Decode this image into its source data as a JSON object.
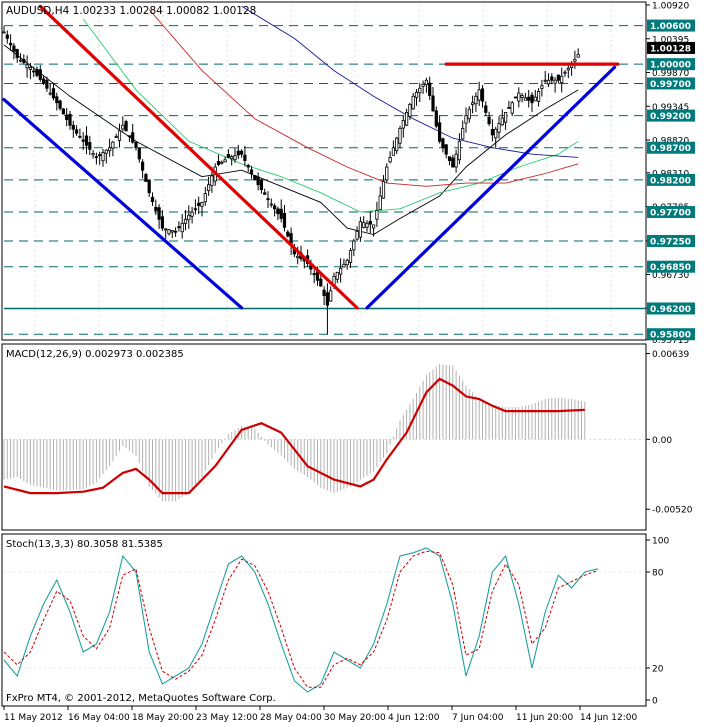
{
  "colors": {
    "background": "#ffffff",
    "grid": "#c8c8c8",
    "border": "#000000",
    "candle": "#000000",
    "level_line": "#006a6a",
    "level_label_bg": "#007a7a",
    "current_price_bg": "#000000",
    "trend_red": "#e00000",
    "trend_blue": "#0000dd",
    "ma_fast": "#000000",
    "ma_green": "#2ecc71",
    "ma_red": "#cc2222",
    "ma_blue": "#1a1a99",
    "macd_signal": "#cc0000",
    "macd_hist": "#b0b0b0",
    "stoch_main": "#20a0a0",
    "stoch_signal": "#cc0000"
  },
  "chart_data": [
    {
      "type": "candlestick",
      "title": "AUDUSD,H4  1.00233 1.00284 1.00082 1.00128",
      "price_axis_ticks": [
        "1.00920",
        "1.00395",
        "0.99870",
        "0.99345",
        "0.98820",
        "0.98310",
        "0.97785",
        "0.97250",
        "0.96730",
        "0.96210",
        "0.95715"
      ],
      "ylim": [
        0.9571,
        1.0092
      ],
      "current_price": "1.00128",
      "levels": [
        {
          "label": "1.00600",
          "value": 1.006
        },
        {
          "label": "1.00000",
          "value": 1.0
        },
        {
          "label": "0.99700",
          "value": 0.997
        },
        {
          "label": "0.99200",
          "value": 0.992
        },
        {
          "label": "0.98700",
          "value": 0.987
        },
        {
          "label": "0.98200",
          "value": 0.982
        },
        {
          "label": "0.97700",
          "value": 0.977
        },
        {
          "label": "0.97250",
          "value": 0.9725
        },
        {
          "label": "0.96850",
          "value": 0.9685
        },
        {
          "label": "0.96200",
          "value": 0.962
        },
        {
          "label": "0.95800",
          "value": 0.958
        }
      ],
      "close_path": [
        [
          0,
          1.005
        ],
        [
          4,
          1.001
        ],
        [
          8,
          0.9995
        ],
        [
          12,
          0.997
        ],
        [
          16,
          0.994
        ],
        [
          20,
          0.9905
        ],
        [
          24,
          0.988
        ],
        [
          28,
          0.9855
        ],
        [
          32,
          0.987
        ],
        [
          36,
          0.9905
        ],
        [
          40,
          0.987
        ],
        [
          44,
          0.98
        ],
        [
          48,
          0.9745
        ],
        [
          52,
          0.974
        ],
        [
          56,
          0.9765
        ],
        [
          60,
          0.9785
        ],
        [
          64,
          0.984
        ],
        [
          68,
          0.9855
        ],
        [
          72,
          0.986
        ],
        [
          76,
          0.982
        ],
        [
          80,
          0.979
        ],
        [
          84,
          0.976
        ],
        [
          88,
          0.9705
        ],
        [
          92,
          0.969
        ],
        [
          96,
          0.9655
        ],
        [
          98,
          0.9625
        ],
        [
          100,
          0.967
        ],
        [
          104,
          0.9695
        ],
        [
          108,
          0.9755
        ],
        [
          112,
          0.975
        ],
        [
          116,
          0.984
        ],
        [
          120,
          0.99
        ],
        [
          124,
          0.995
        ],
        [
          128,
          0.9975
        ],
        [
          132,
          0.988
        ],
        [
          136,
          0.984
        ],
        [
          140,
          0.992
        ],
        [
          144,
          0.996
        ],
        [
          148,
          0.989
        ],
        [
          152,
          0.9925
        ],
        [
          156,
          0.9955
        ],
        [
          160,
          0.994
        ],
        [
          164,
          0.9975
        ],
        [
          168,
          0.9975
        ],
        [
          172,
          1.0
        ],
        [
          174,
          1.0015
        ]
      ],
      "moving_averages": [
        {
          "color": "ma_fast",
          "path": [
            [
              0,
              1.003
            ],
            [
              20,
              0.995
            ],
            [
              40,
              0.988
            ],
            [
              60,
              0.9825
            ],
            [
              72,
              0.9835
            ],
            [
              84,
              0.981
            ],
            [
              96,
              0.9785
            ],
            [
              104,
              0.9745
            ],
            [
              112,
              0.9735
            ],
            [
              120,
              0.976
            ],
            [
              132,
              0.9795
            ],
            [
              140,
              0.984
            ],
            [
              152,
              0.989
            ],
            [
              164,
              0.993
            ],
            [
              174,
              0.996
            ]
          ]
        },
        {
          "color": "ma_green",
          "path": [
            [
              24,
              1.007
            ],
            [
              40,
              0.996
            ],
            [
              56,
              0.988
            ],
            [
              72,
              0.9845
            ],
            [
              84,
              0.9825
            ],
            [
              96,
              0.98
            ],
            [
              108,
              0.977
            ],
            [
              120,
              0.9775
            ],
            [
              132,
              0.98
            ],
            [
              144,
              0.9815
            ],
            [
              156,
              0.984
            ],
            [
              168,
              0.986
            ],
            [
              174,
              0.988
            ]
          ]
        },
        {
          "color": "ma_red",
          "path": [
            [
              44,
              1.0085
            ],
            [
              60,
              0.999
            ],
            [
              76,
              0.9915
            ],
            [
              92,
              0.987
            ],
            [
              104,
              0.984
            ],
            [
              116,
              0.9815
            ],
            [
              128,
              0.981
            ],
            [
              140,
              0.9815
            ],
            [
              152,
              0.9815
            ],
            [
              164,
              0.983
            ],
            [
              174,
              0.9845
            ]
          ]
        },
        {
          "color": "ma_blue",
          "path": [
            [
              72,
              1.009
            ],
            [
              88,
              1.004
            ],
            [
              100,
              0.999
            ],
            [
              112,
              0.995
            ],
            [
              124,
              0.9915
            ],
            [
              136,
              0.9885
            ],
            [
              148,
              0.987
            ],
            [
              160,
              0.986
            ],
            [
              174,
              0.9855
            ]
          ]
        }
      ],
      "trend_lines": [
        {
          "color": "trend_red",
          "points": [
            [
              11,
              1.009
            ],
            [
              107,
              0.9621
            ]
          ]
        },
        {
          "color": "trend_red",
          "points": [
            [
              134,
              1.0
            ],
            [
              186,
              1.0
            ]
          ]
        },
        {
          "color": "trend_blue",
          "points": [
            [
              0,
              0.9945
            ],
            [
              72,
              0.9621
            ]
          ]
        },
        {
          "color": "trend_blue",
          "points": [
            [
              110,
              0.9621
            ],
            [
              185,
              0.9995
            ]
          ]
        }
      ]
    },
    {
      "type": "line",
      "title": "MACD(12,26,9) 0.002973 0.002385",
      "tick_labels": [
        "0.00639",
        "0.00",
        "-0.00520"
      ],
      "ylim": [
        -0.0066,
        0.0068
      ],
      "histogram": [
        [
          0,
          -0.003
        ],
        [
          4,
          -0.0028
        ],
        [
          8,
          -0.0034
        ],
        [
          12,
          -0.0036
        ],
        [
          16,
          -0.0038
        ],
        [
          20,
          -0.0038
        ],
        [
          24,
          -0.0037
        ],
        [
          28,
          -0.0032
        ],
        [
          32,
          -0.002
        ],
        [
          36,
          -0.0005
        ],
        [
          40,
          -0.0012
        ],
        [
          44,
          -0.0035
        ],
        [
          48,
          -0.0046
        ],
        [
          52,
          -0.0046
        ],
        [
          56,
          -0.004
        ],
        [
          60,
          -0.0028
        ],
        [
          64,
          -0.001
        ],
        [
          68,
          0.0004
        ],
        [
          72,
          0.001
        ],
        [
          76,
          0.0008
        ],
        [
          80,
          -0.0004
        ],
        [
          84,
          -0.0012
        ],
        [
          88,
          -0.0022
        ],
        [
          92,
          -0.0028
        ],
        [
          96,
          -0.0036
        ],
        [
          100,
          -0.004
        ],
        [
          104,
          -0.0036
        ],
        [
          108,
          -0.003
        ],
        [
          112,
          -0.0024
        ],
        [
          116,
          -0.001
        ],
        [
          120,
          0.0014
        ],
        [
          124,
          0.003
        ],
        [
          128,
          0.0048
        ],
        [
          132,
          0.0056
        ],
        [
          136,
          0.0055
        ],
        [
          140,
          0.004
        ],
        [
          144,
          0.003
        ],
        [
          148,
          0.0026
        ],
        [
          152,
          0.0024
        ],
        [
          156,
          0.0024
        ],
        [
          160,
          0.0026
        ],
        [
          164,
          0.003
        ],
        [
          168,
          0.0031
        ],
        [
          172,
          0.003
        ],
        [
          176,
          0.0028
        ]
      ],
      "signal": [
        [
          0,
          -0.0035
        ],
        [
          8,
          -0.004
        ],
        [
          16,
          -0.004
        ],
        [
          24,
          -0.0039
        ],
        [
          30,
          -0.0036
        ],
        [
          36,
          -0.0025
        ],
        [
          40,
          -0.0022
        ],
        [
          44,
          -0.003
        ],
        [
          48,
          -0.004
        ],
        [
          56,
          -0.004
        ],
        [
          64,
          -0.002
        ],
        [
          72,
          0.0007
        ],
        [
          78,
          0.0012
        ],
        [
          84,
          0.0005
        ],
        [
          92,
          -0.002
        ],
        [
          100,
          -0.003
        ],
        [
          108,
          -0.0035
        ],
        [
          112,
          -0.003
        ],
        [
          116,
          -0.0015
        ],
        [
          122,
          0.0005
        ],
        [
          128,
          0.0035
        ],
        [
          132,
          0.0045
        ],
        [
          136,
          0.004
        ],
        [
          140,
          0.0032
        ],
        [
          144,
          0.003
        ],
        [
          148,
          0.0025
        ],
        [
          152,
          0.0021
        ],
        [
          160,
          0.0021
        ],
        [
          168,
          0.0021
        ],
        [
          176,
          0.0022
        ]
      ]
    },
    {
      "type": "line",
      "title": "Stoch(13,3,3) 80.3058 81.5385",
      "tick_labels": [
        "100",
        "80",
        "20",
        "0"
      ],
      "ylim": [
        0,
        100
      ],
      "main": [
        [
          0,
          25
        ],
        [
          4,
          15
        ],
        [
          8,
          40
        ],
        [
          12,
          60
        ],
        [
          16,
          75
        ],
        [
          20,
          55
        ],
        [
          24,
          30
        ],
        [
          28,
          35
        ],
        [
          32,
          55
        ],
        [
          36,
          90
        ],
        [
          40,
          80
        ],
        [
          44,
          30
        ],
        [
          48,
          10
        ],
        [
          52,
          15
        ],
        [
          56,
          20
        ],
        [
          60,
          35
        ],
        [
          64,
          60
        ],
        [
          68,
          85
        ],
        [
          72,
          90
        ],
        [
          76,
          80
        ],
        [
          80,
          60
        ],
        [
          84,
          35
        ],
        [
          88,
          12
        ],
        [
          92,
          5
        ],
        [
          96,
          10
        ],
        [
          100,
          30
        ],
        [
          104,
          25
        ],
        [
          108,
          20
        ],
        [
          112,
          35
        ],
        [
          116,
          60
        ],
        [
          120,
          90
        ],
        [
          124,
          92
        ],
        [
          128,
          95
        ],
        [
          132,
          90
        ],
        [
          136,
          60
        ],
        [
          140,
          15
        ],
        [
          144,
          40
        ],
        [
          148,
          80
        ],
        [
          152,
          90
        ],
        [
          156,
          60
        ],
        [
          160,
          20
        ],
        [
          164,
          55
        ],
        [
          168,
          78
        ],
        [
          172,
          70
        ],
        [
          176,
          80
        ],
        [
          180,
          82
        ]
      ],
      "signal": [
        [
          0,
          30
        ],
        [
          4,
          22
        ],
        [
          8,
          30
        ],
        [
          12,
          50
        ],
        [
          16,
          68
        ],
        [
          20,
          62
        ],
        [
          24,
          40
        ],
        [
          28,
          32
        ],
        [
          32,
          45
        ],
        [
          36,
          78
        ],
        [
          40,
          82
        ],
        [
          44,
          45
        ],
        [
          48,
          18
        ],
        [
          52,
          13
        ],
        [
          56,
          18
        ],
        [
          60,
          28
        ],
        [
          64,
          50
        ],
        [
          68,
          75
        ],
        [
          72,
          88
        ],
        [
          76,
          84
        ],
        [
          80,
          68
        ],
        [
          84,
          45
        ],
        [
          88,
          20
        ],
        [
          92,
          8
        ],
        [
          96,
          8
        ],
        [
          100,
          22
        ],
        [
          104,
          26
        ],
        [
          108,
          22
        ],
        [
          112,
          30
        ],
        [
          116,
          50
        ],
        [
          120,
          80
        ],
        [
          124,
          90
        ],
        [
          128,
          93
        ],
        [
          132,
          92
        ],
        [
          136,
          72
        ],
        [
          140,
          28
        ],
        [
          144,
          32
        ],
        [
          148,
          68
        ],
        [
          152,
          85
        ],
        [
          156,
          72
        ],
        [
          160,
          35
        ],
        [
          164,
          45
        ],
        [
          168,
          70
        ],
        [
          172,
          74
        ],
        [
          176,
          78
        ],
        [
          180,
          81
        ]
      ]
    }
  ],
  "time_axis_labels": [
    "11 May 2012",
    "16 May 04:00",
    "18 May 20:00",
    "23 May 12:00",
    "28 May 04:00",
    "30 May 20:00",
    "4 Jun 12:00",
    "7 Jun 04:00",
    "11 Jun 20:00",
    "14 Jun 12:00"
  ],
  "footer": "FxPro MT4, © 2001-2012, MetaQuotes Software Corp."
}
